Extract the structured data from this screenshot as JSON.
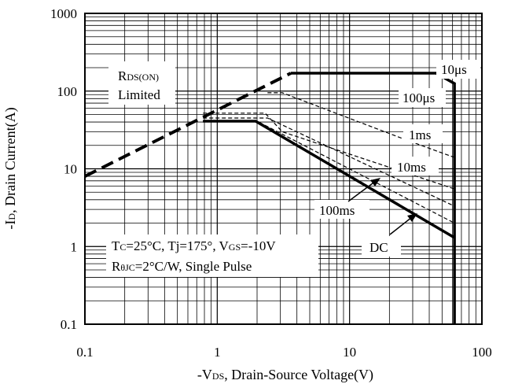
{
  "chart_data": {
    "type": "line",
    "xscale": "log",
    "yscale": "log",
    "xlim": [
      0.1,
      100
    ],
    "ylim": [
      0.1,
      1000
    ],
    "grid": true,
    "x_ticks": [
      "0.1",
      "1",
      "10",
      "100"
    ],
    "y_ticks": [
      "0.1",
      "1",
      "10",
      "100",
      "1000"
    ],
    "xlabel": {
      "pre": "-V",
      "sub": "DS",
      "post": ", Drain-Source Voltage(V)"
    },
    "ylabel": {
      "pre": "-I",
      "sub": "D",
      "post": ", Drain Current(A)"
    },
    "series": [
      {
        "name": "RDS(ON) Limited",
        "style": "dashed-thick",
        "x": [
          0.1,
          3.6
        ],
        "y": [
          8,
          170
        ]
      },
      {
        "name": "10μs",
        "style": "solid-thick",
        "x": [
          3.6,
          45,
          62,
          62
        ],
        "y": [
          170,
          170,
          125,
          0.1
        ]
      },
      {
        "name": "100μs",
        "style": "dashed-thin",
        "x": [
          2.4,
          3.1,
          26,
          62
        ],
        "y": [
          95,
          95,
          24,
          14
        ]
      },
      {
        "name": "1ms",
        "style": "dashed-thin",
        "x": [
          0.78,
          2.3,
          3.1,
          62
        ],
        "y": [
          52,
          52,
          30,
          5.5
        ]
      },
      {
        "name": "10ms",
        "style": "dashed-thin",
        "x": [
          0.78,
          2.4,
          62
        ],
        "y": [
          45,
          45,
          3.3
        ]
      },
      {
        "name": "100ms",
        "style": "dashed-thin",
        "x": [
          0.78,
          2.0,
          62
        ],
        "y": [
          41,
          41,
          2.0
        ]
      },
      {
        "name": "DC",
        "style": "solid-thick",
        "x": [
          0.78,
          1.95,
          62
        ],
        "y": [
          41,
          41,
          1.3
        ]
      }
    ],
    "annotations": {
      "rds_line1": {
        "pre": "R",
        "sub": "DS(ON)"
      },
      "rds_line2": "Limited",
      "label_10us": "10μs",
      "label_100us": "100μs",
      "label_1ms": "1ms",
      "label_10ms": "10ms",
      "label_100ms": "100ms",
      "label_dc": "DC",
      "cond_line1": {
        "a": "T",
        "b": "C",
        "c": "=25°C, Tj=175°, V",
        "d": "GS",
        "e": "=-10V"
      },
      "cond_line2": {
        "a": "R",
        "b": "θJC",
        "c": "=2°C/W, Single Pulse"
      }
    }
  }
}
